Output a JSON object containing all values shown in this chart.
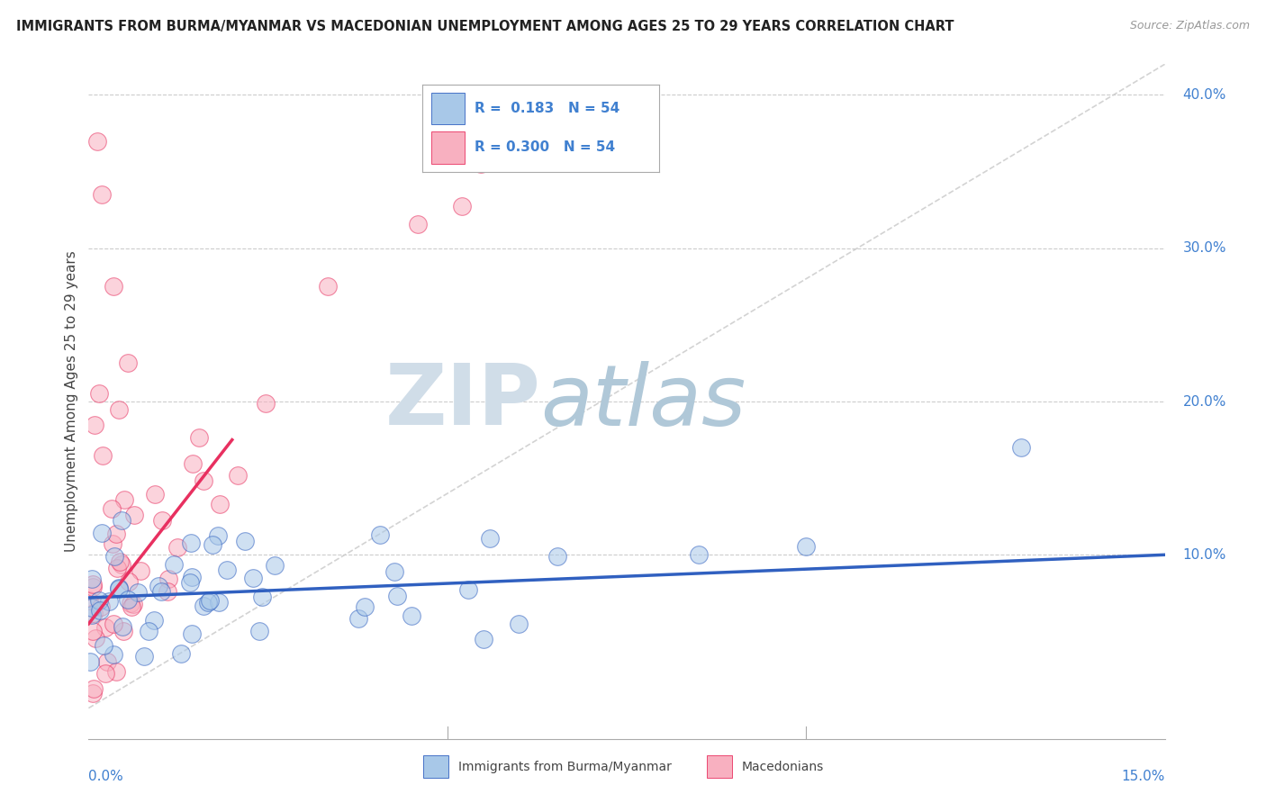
{
  "title": "IMMIGRANTS FROM BURMA/MYANMAR VS MACEDONIAN UNEMPLOYMENT AMONG AGES 25 TO 29 YEARS CORRELATION CHART",
  "source": "Source: ZipAtlas.com",
  "ylabel": "Unemployment Among Ages 25 to 29 years",
  "xlim": [
    0.0,
    15.0
  ],
  "ylim": [
    -2.0,
    42.0
  ],
  "color_blue": "#a8c8e8",
  "color_pink": "#f8b0c0",
  "color_blue_line": "#3060c0",
  "color_pink_line": "#e83060",
  "color_gray_dash": "#c8c8c8",
  "color_axis": "#4080d0",
  "watermark_zip": "#d0dde8",
  "watermark_atlas": "#b0c8d8",
  "blue_trend_x0": 0.0,
  "blue_trend_y0": 7.2,
  "blue_trend_x1": 15.0,
  "blue_trend_y1": 10.0,
  "pink_trend_x0": 0.0,
  "pink_trend_y0": 5.5,
  "pink_trend_x1": 2.0,
  "pink_trend_y1": 17.5,
  "diag_x0": 0.0,
  "diag_y0": 0.0,
  "diag_x1": 15.0,
  "diag_y1": 42.0,
  "ytick_vals": [
    10.0,
    20.0,
    30.0,
    40.0
  ],
  "ytick_labels": [
    "10.0%",
    "20.0%",
    "30.0%",
    "40.0%"
  ],
  "legend_label1": "Immigrants from Burma/Myanmar",
  "legend_label2": "Macedonians"
}
